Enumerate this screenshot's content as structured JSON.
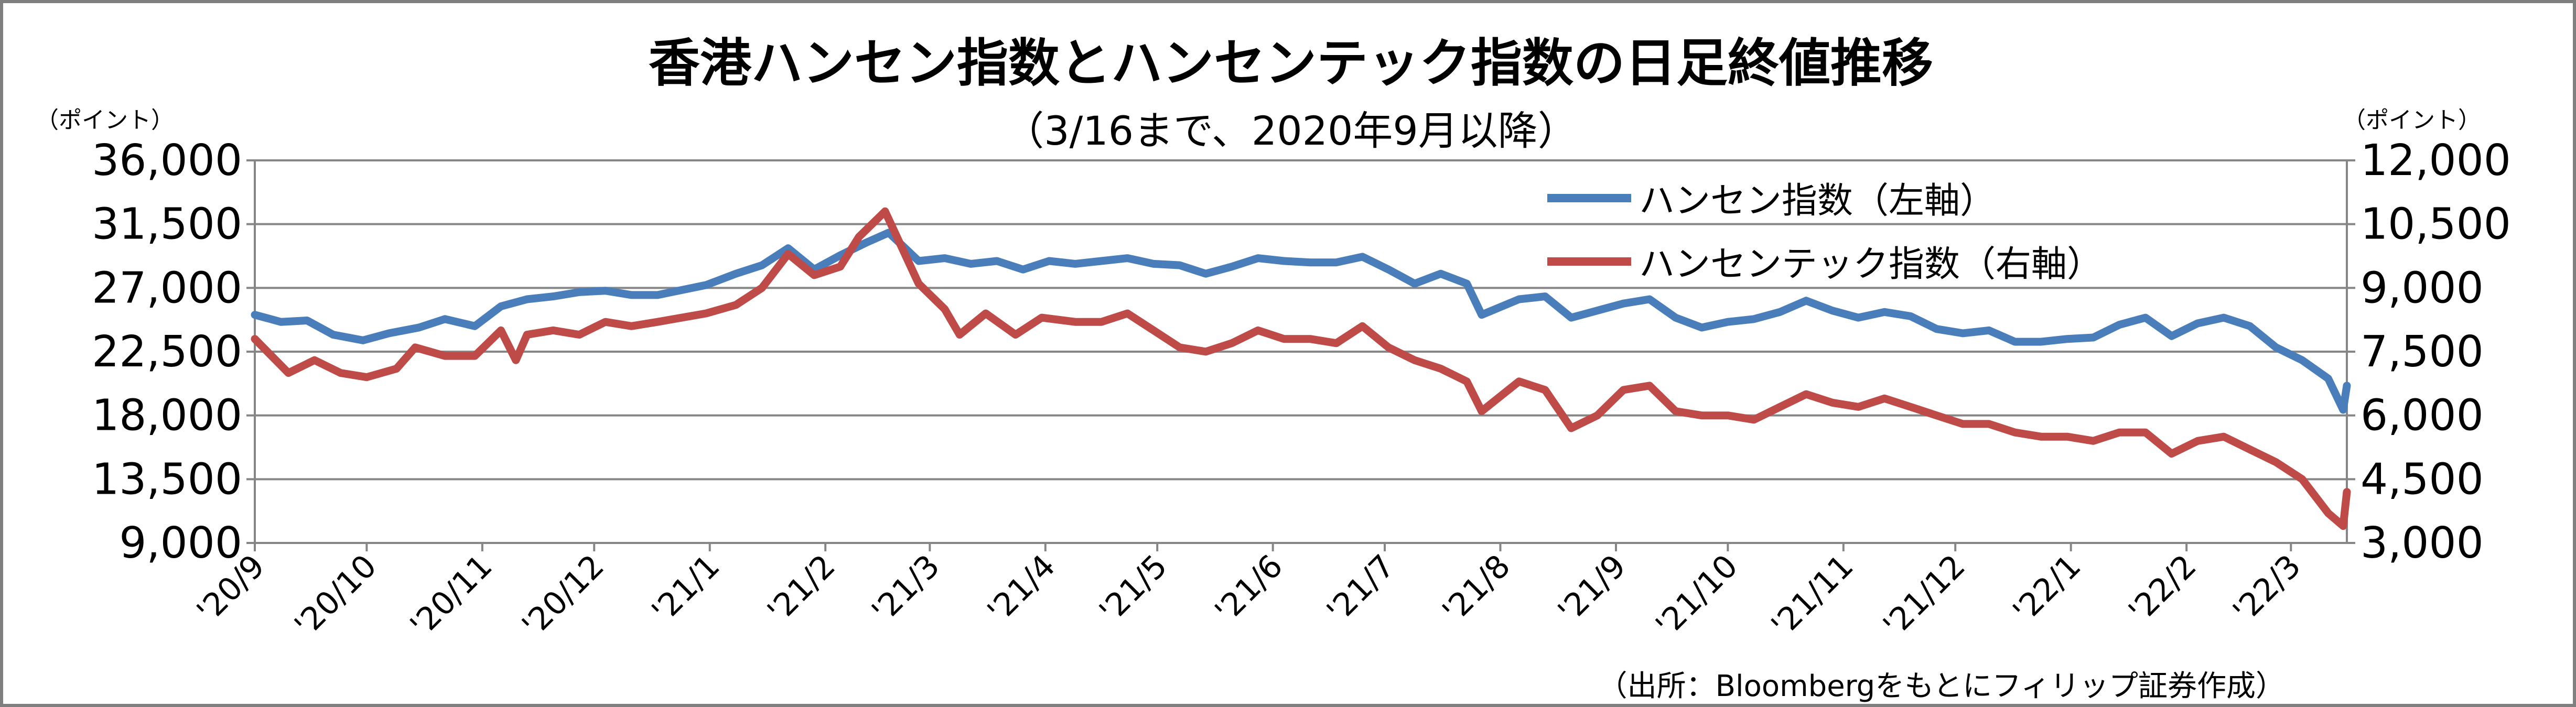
{
  "chart_data": {
    "type": "line",
    "title": "香港ハンセン指数とハンセンテック指数の日足終値推移",
    "subtitle": "（3/16まで、2020年9月以降）",
    "source": "（出所：Bloombergをもとにフィリップ証券作成）",
    "y_left_unit": "（ポイント）",
    "y_right_unit": "（ポイント）",
    "y_left": {
      "min": 9000,
      "max": 36000,
      "step": 4500,
      "ticks": [
        "9,000",
        "13,500",
        "18,000",
        "22,500",
        "27,000",
        "31,500",
        "36,000"
      ]
    },
    "y_right": {
      "min": 3000,
      "max": 12000,
      "step": 1500,
      "ticks": [
        "3,000",
        "4,500",
        "6,000",
        "7,500",
        "9,000",
        "10,500",
        "12,000"
      ]
    },
    "x_ticks": [
      "'20/9",
      "'20/10",
      "'20/11",
      "'20/12",
      "'21/1",
      "'21/2",
      "'21/3",
      "'21/4",
      "'21/5",
      "'21/6",
      "'21/7",
      "'21/8",
      "'21/9",
      "'21/10",
      "'21/11",
      "'21/12",
      "'22/1",
      "'22/2",
      "'22/3"
    ],
    "grid": true,
    "legend_position": "top-right",
    "series": [
      {
        "name": "ハンセン指数（左軸）",
        "axis": "left",
        "color": "#4a7ebb",
        "points": [
          [
            "2020-09-01",
            25100
          ],
          [
            "2020-09-08",
            24600
          ],
          [
            "2020-09-15",
            24700
          ],
          [
            "2020-09-22",
            23700
          ],
          [
            "2020-09-30",
            23300
          ],
          [
            "2020-10-07",
            23800
          ],
          [
            "2020-10-15",
            24200
          ],
          [
            "2020-10-22",
            24800
          ],
          [
            "2020-10-30",
            24300
          ],
          [
            "2020-11-06",
            25700
          ],
          [
            "2020-11-13",
            26200
          ],
          [
            "2020-11-20",
            26400
          ],
          [
            "2020-11-27",
            26700
          ],
          [
            "2020-12-04",
            26800
          ],
          [
            "2020-12-11",
            26500
          ],
          [
            "2020-12-18",
            26500
          ],
          [
            "2020-12-31",
            27200
          ],
          [
            "2021-01-08",
            28000
          ],
          [
            "2021-01-15",
            28600
          ],
          [
            "2021-01-22",
            29800
          ],
          [
            "2021-01-29",
            28300
          ],
          [
            "2021-02-05",
            29300
          ],
          [
            "2021-02-12",
            30200
          ],
          [
            "2021-02-18",
            30900
          ],
          [
            "2021-02-26",
            28900
          ],
          [
            "2021-03-05",
            29100
          ],
          [
            "2021-03-12",
            28700
          ],
          [
            "2021-03-19",
            28900
          ],
          [
            "2021-03-26",
            28300
          ],
          [
            "2021-04-02",
            28900
          ],
          [
            "2021-04-09",
            28700
          ],
          [
            "2021-04-16",
            28900
          ],
          [
            "2021-04-23",
            29100
          ],
          [
            "2021-04-30",
            28700
          ],
          [
            "2021-05-07",
            28600
          ],
          [
            "2021-05-14",
            28000
          ],
          [
            "2021-05-21",
            28500
          ],
          [
            "2021-05-28",
            29100
          ],
          [
            "2021-06-04",
            28900
          ],
          [
            "2021-06-11",
            28800
          ],
          [
            "2021-06-18",
            28800
          ],
          [
            "2021-06-25",
            29200
          ],
          [
            "2021-07-02",
            28300
          ],
          [
            "2021-07-09",
            27300
          ],
          [
            "2021-07-16",
            28000
          ],
          [
            "2021-07-23",
            27300
          ],
          [
            "2021-07-27",
            25100
          ],
          [
            "2021-08-06",
            26200
          ],
          [
            "2021-08-13",
            26400
          ],
          [
            "2021-08-20",
            24900
          ],
          [
            "2021-08-27",
            25400
          ],
          [
            "2021-09-03",
            25900
          ],
          [
            "2021-09-10",
            26200
          ],
          [
            "2021-09-17",
            24900
          ],
          [
            "2021-09-24",
            24200
          ],
          [
            "2021-10-01",
            24600
          ],
          [
            "2021-10-08",
            24800
          ],
          [
            "2021-10-15",
            25300
          ],
          [
            "2021-10-22",
            26100
          ],
          [
            "2021-10-29",
            25400
          ],
          [
            "2021-11-05",
            24900
          ],
          [
            "2021-11-12",
            25300
          ],
          [
            "2021-11-19",
            25000
          ],
          [
            "2021-11-26",
            24100
          ],
          [
            "2021-12-03",
            23800
          ],
          [
            "2021-12-10",
            24000
          ],
          [
            "2021-12-17",
            23200
          ],
          [
            "2021-12-24",
            23200
          ],
          [
            "2021-12-31",
            23400
          ],
          [
            "2022-01-07",
            23500
          ],
          [
            "2022-01-14",
            24400
          ],
          [
            "2022-01-21",
            24900
          ],
          [
            "2022-01-28",
            23600
          ],
          [
            "2022-02-04",
            24500
          ],
          [
            "2022-02-11",
            24900
          ],
          [
            "2022-02-18",
            24300
          ],
          [
            "2022-02-25",
            22800
          ],
          [
            "2022-03-04",
            21900
          ],
          [
            "2022-03-11",
            20600
          ],
          [
            "2022-03-15",
            18400
          ],
          [
            "2022-03-16",
            20100
          ]
        ]
      },
      {
        "name": "ハンセンテック指数（右軸）",
        "axis": "right",
        "color": "#be4b48",
        "points": [
          [
            "2020-09-01",
            7800
          ],
          [
            "2020-09-10",
            7000
          ],
          [
            "2020-09-17",
            7300
          ],
          [
            "2020-09-24",
            7000
          ],
          [
            "2020-10-01",
            6900
          ],
          [
            "2020-10-09",
            7100
          ],
          [
            "2020-10-14",
            7600
          ],
          [
            "2020-10-22",
            7400
          ],
          [
            "2020-10-30",
            7400
          ],
          [
            "2020-11-06",
            8000
          ],
          [
            "2020-11-10",
            7300
          ],
          [
            "2020-11-13",
            7900
          ],
          [
            "2020-11-20",
            8000
          ],
          [
            "2020-11-27",
            7900
          ],
          [
            "2020-12-04",
            8200
          ],
          [
            "2020-12-11",
            8100
          ],
          [
            "2020-12-18",
            8200
          ],
          [
            "2020-12-31",
            8400
          ],
          [
            "2021-01-08",
            8600
          ],
          [
            "2021-01-15",
            9000
          ],
          [
            "2021-01-22",
            9800
          ],
          [
            "2021-01-29",
            9300
          ],
          [
            "2021-02-05",
            9500
          ],
          [
            "2021-02-10",
            10200
          ],
          [
            "2021-02-17",
            10800
          ],
          [
            "2021-02-26",
            9100
          ],
          [
            "2021-03-05",
            8500
          ],
          [
            "2021-03-09",
            7900
          ],
          [
            "2021-03-16",
            8400
          ],
          [
            "2021-03-24",
            7900
          ],
          [
            "2021-03-31",
            8300
          ],
          [
            "2021-04-09",
            8200
          ],
          [
            "2021-04-16",
            8200
          ],
          [
            "2021-04-23",
            8400
          ],
          [
            "2021-04-30",
            8000
          ],
          [
            "2021-05-07",
            7600
          ],
          [
            "2021-05-14",
            7500
          ],
          [
            "2021-05-21",
            7700
          ],
          [
            "2021-05-28",
            8000
          ],
          [
            "2021-06-04",
            7800
          ],
          [
            "2021-06-11",
            7800
          ],
          [
            "2021-06-18",
            7700
          ],
          [
            "2021-06-25",
            8100
          ],
          [
            "2021-07-02",
            7600
          ],
          [
            "2021-07-09",
            7300
          ],
          [
            "2021-07-16",
            7100
          ],
          [
            "2021-07-23",
            6800
          ],
          [
            "2021-07-27",
            6100
          ],
          [
            "2021-08-06",
            6800
          ],
          [
            "2021-08-13",
            6600
          ],
          [
            "2021-08-20",
            5700
          ],
          [
            "2021-08-27",
            6000
          ],
          [
            "2021-09-03",
            6600
          ],
          [
            "2021-09-10",
            6700
          ],
          [
            "2021-09-17",
            6100
          ],
          [
            "2021-09-24",
            6000
          ],
          [
            "2021-10-01",
            6000
          ],
          [
            "2021-10-08",
            5900
          ],
          [
            "2021-10-15",
            6200
          ],
          [
            "2021-10-22",
            6500
          ],
          [
            "2021-10-29",
            6300
          ],
          [
            "2021-11-05",
            6200
          ],
          [
            "2021-11-12",
            6400
          ],
          [
            "2021-11-19",
            6200
          ],
          [
            "2021-11-26",
            6000
          ],
          [
            "2021-12-03",
            5800
          ],
          [
            "2021-12-10",
            5800
          ],
          [
            "2021-12-17",
            5600
          ],
          [
            "2021-12-24",
            5500
          ],
          [
            "2021-12-31",
            5500
          ],
          [
            "2022-01-07",
            5400
          ],
          [
            "2022-01-14",
            5600
          ],
          [
            "2022-01-21",
            5600
          ],
          [
            "2022-01-28",
            5100
          ],
          [
            "2022-02-04",
            5400
          ],
          [
            "2022-02-11",
            5500
          ],
          [
            "2022-02-18",
            5200
          ],
          [
            "2022-02-25",
            4900
          ],
          [
            "2022-03-04",
            4500
          ],
          [
            "2022-03-11",
            3700
          ],
          [
            "2022-03-15",
            3400
          ],
          [
            "2022-03-16",
            4200
          ]
        ]
      }
    ]
  }
}
